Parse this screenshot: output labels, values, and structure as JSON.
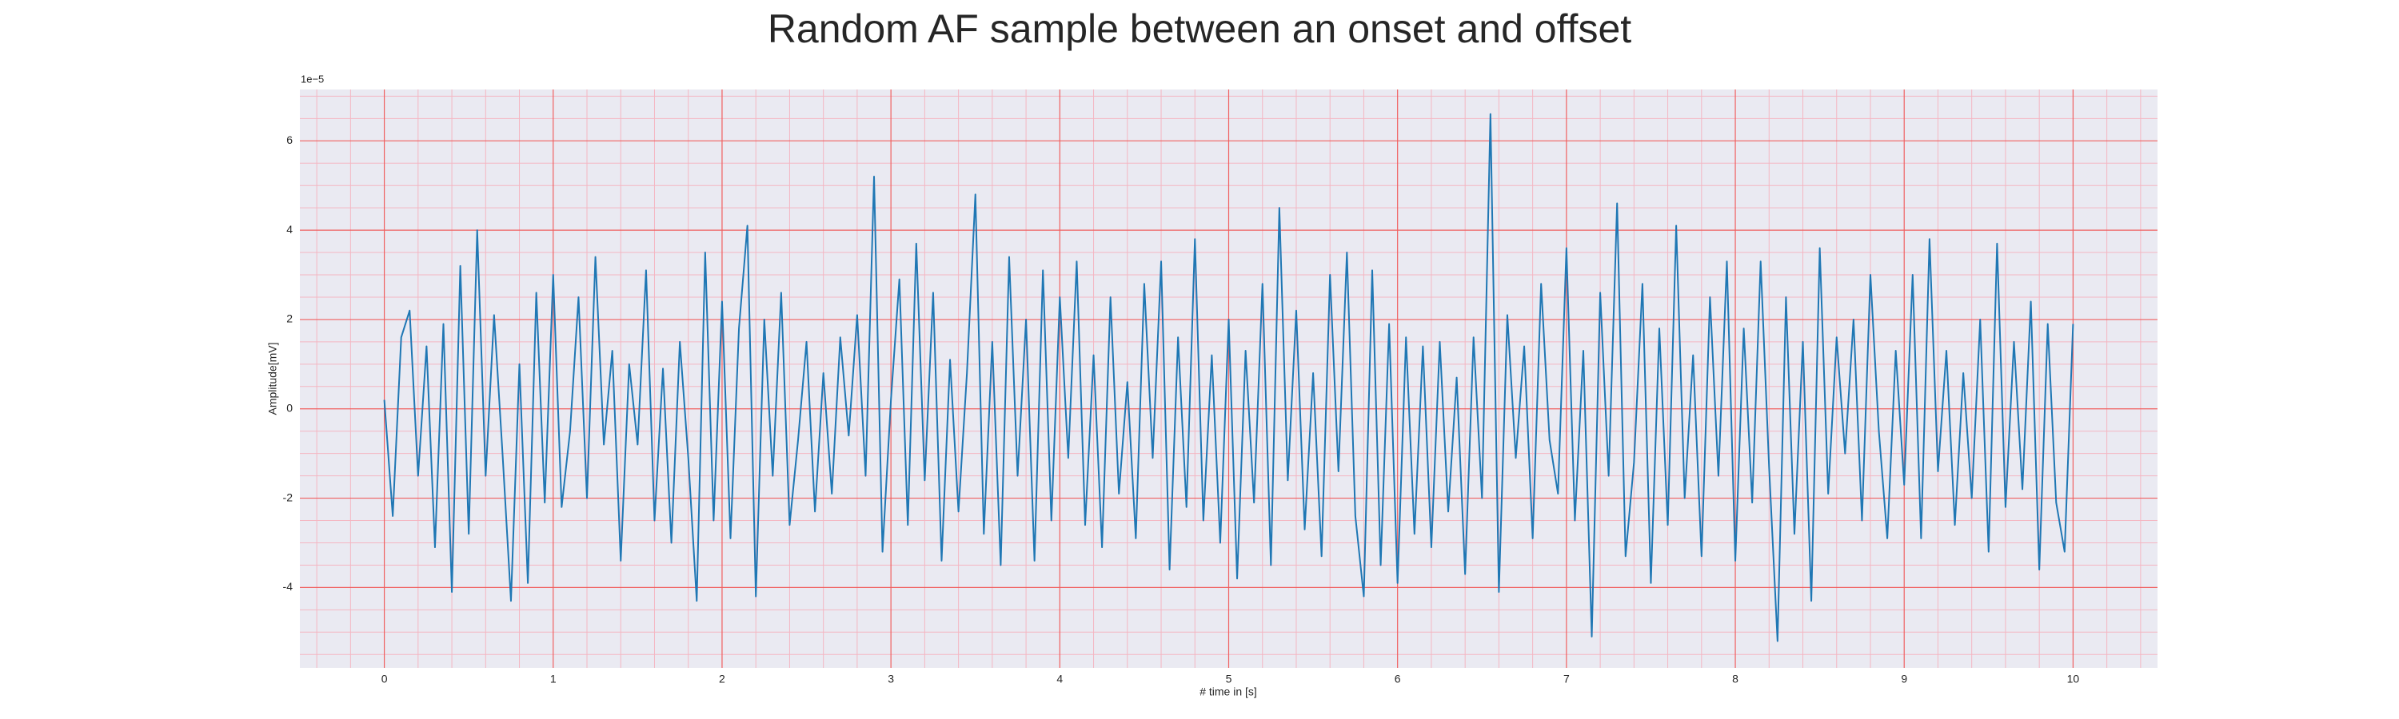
{
  "chart_data": {
    "type": "line",
    "title": "Random AF sample between an onset and offset",
    "xlabel": "# time in [s]",
    "ylabel": "Amplitude[mV]",
    "y_offset_label": "1e−5",
    "x": [
      0,
      0.05,
      0.1,
      0.15,
      0.2,
      0.25,
      0.3,
      0.35,
      0.4,
      0.45,
      0.5,
      0.55,
      0.6,
      0.65,
      0.7,
      0.75,
      0.8,
      0.85,
      0.9,
      0.95,
      1,
      1.05,
      1.1,
      1.15,
      1.2,
      1.25,
      1.3,
      1.35,
      1.4,
      1.45,
      1.5,
      1.55,
      1.6,
      1.65,
      1.7,
      1.75,
      1.8,
      1.85,
      1.9,
      1.95,
      2,
      2.05,
      2.1,
      2.15,
      2.2,
      2.25,
      2.3,
      2.35,
      2.4,
      2.45,
      2.5,
      2.55,
      2.6,
      2.65,
      2.7,
      2.75,
      2.8,
      2.85,
      2.9,
      2.95,
      3,
      3.05,
      3.1,
      3.15,
      3.2,
      3.25,
      3.3,
      3.35,
      3.4,
      3.45,
      3.5,
      3.55,
      3.6,
      3.65,
      3.7,
      3.75,
      3.8,
      3.85,
      3.9,
      3.95,
      4,
      4.05,
      4.1,
      4.15,
      4.2,
      4.25,
      4.3,
      4.35,
      4.4,
      4.45,
      4.5,
      4.55,
      4.6,
      4.65,
      4.7,
      4.75,
      4.8,
      4.85,
      4.9,
      4.95,
      5,
      5.05,
      5.1,
      5.15,
      5.2,
      5.25,
      5.3,
      5.35,
      5.4,
      5.45,
      5.5,
      5.55,
      5.6,
      5.65,
      5.7,
      5.75,
      5.8,
      5.85,
      5.9,
      5.95,
      6,
      6.05,
      6.1,
      6.15,
      6.2,
      6.25,
      6.3,
      6.35,
      6.4,
      6.45,
      6.5,
      6.55,
      6.6,
      6.65,
      6.7,
      6.75,
      6.8,
      6.85,
      6.9,
      6.95,
      7,
      7.05,
      7.1,
      7.15,
      7.2,
      7.25,
      7.3,
      7.35,
      7.4,
      7.45,
      7.5,
      7.55,
      7.6,
      7.65,
      7.7,
      7.75,
      7.8,
      7.85,
      7.9,
      7.95,
      8,
      8.05,
      8.1,
      8.15,
      8.2,
      8.25,
      8.3,
      8.35,
      8.4,
      8.45,
      8.5,
      8.55,
      8.6,
      8.65,
      8.7,
      8.75,
      8.8,
      8.85,
      8.9,
      8.95,
      9,
      9.05,
      9.1,
      9.15,
      9.2,
      9.25,
      9.3,
      9.35,
      9.4,
      9.45,
      9.5,
      9.55,
      9.6,
      9.65,
      9.7,
      9.75,
      9.8,
      9.85,
      9.9,
      9.95,
      10
    ],
    "series": [
      {
        "color": "#1f77b4",
        "values": [
          0.2,
          -2.4,
          1.6,
          2.2,
          -1.5,
          1.4,
          -3.1,
          1.9,
          -4.1,
          3.2,
          -2.8,
          4.0,
          -1.5,
          2.1,
          -1.0,
          -4.3,
          1.0,
          -3.9,
          2.6,
          -2.1,
          3.0,
          -2.2,
          -0.5,
          2.5,
          -2.0,
          3.4,
          -0.8,
          1.3,
          -3.4,
          1.0,
          -0.8,
          3.1,
          -2.5,
          0.9,
          -3.0,
          1.5,
          -1.1,
          -4.3,
          3.5,
          -2.5,
          2.4,
          -2.9,
          1.8,
          4.1,
          -4.2,
          2.0,
          -1.5,
          2.6,
          -2.6,
          -0.7,
          1.5,
          -2.3,
          0.8,
          -1.9,
          1.6,
          -0.6,
          2.1,
          -1.5,
          5.2,
          -3.2,
          0.2,
          2.9,
          -2.6,
          3.7,
          -1.6,
          2.6,
          -3.4,
          1.1,
          -2.3,
          0.8,
          4.8,
          -2.8,
          1.5,
          -3.5,
          3.4,
          -1.5,
          2.0,
          -3.4,
          3.1,
          -2.5,
          2.5,
          -1.1,
          3.3,
          -2.6,
          1.2,
          -3.1,
          2.5,
          -1.9,
          0.6,
          -2.9,
          2.8,
          -1.1,
          3.3,
          -3.6,
          1.6,
          -2.2,
          3.8,
          -2.5,
          1.2,
          -3.0,
          2.0,
          -3.8,
          1.3,
          -2.1,
          2.8,
          -3.5,
          4.5,
          -1.6,
          2.2,
          -2.7,
          0.8,
          -3.3,
          3.0,
          -1.4,
          3.5,
          -2.4,
          -4.2,
          3.1,
          -3.5,
          1.9,
          -3.9,
          1.6,
          -2.8,
          1.4,
          -3.1,
          1.5,
          -2.3,
          0.7,
          -3.7,
          1.6,
          -2.0,
          6.6,
          -4.1,
          2.1,
          -1.1,
          1.4,
          -2.9,
          2.8,
          -0.7,
          -1.9,
          3.6,
          -2.5,
          1.3,
          -5.1,
          2.6,
          -1.5,
          4.6,
          -3.3,
          -1.2,
          2.8,
          -3.9,
          1.8,
          -2.6,
          4.1,
          -2.0,
          1.2,
          -3.3,
          2.5,
          -1.5,
          3.3,
          -3.4,
          1.8,
          -2.1,
          3.3,
          -1.3,
          -5.2,
          2.5,
          -2.8,
          1.5,
          -4.3,
          3.6,
          -1.9,
          1.6,
          -1.0,
          2.0,
          -2.5,
          3.0,
          -0.5,
          -2.9,
          1.3,
          -1.7,
          3.0,
          -2.9,
          3.8,
          -1.4,
          1.3,
          -2.6,
          0.8,
          -2.0,
          2.0,
          -3.2,
          3.7,
          -2.2,
          1.5,
          -1.8,
          2.4,
          -3.6,
          1.9,
          -2.1,
          -3.2,
          1.9
        ]
      }
    ],
    "xlim": [
      -0.5,
      10.5
    ],
    "ylim": [
      -5.8,
      7.15
    ],
    "xticks": [
      0,
      1,
      2,
      3,
      4,
      5,
      6,
      7,
      8,
      9,
      10
    ],
    "yticks": [
      -4,
      -2,
      0,
      2,
      4,
      6
    ],
    "x_minor_ticks": [
      -0.4,
      -0.2,
      0.2,
      0.4,
      0.6,
      0.8,
      1.2,
      1.4,
      1.6,
      1.8,
      2.2,
      2.4,
      2.6,
      2.8,
      3.2,
      3.4,
      3.6,
      3.8,
      4.2,
      4.4,
      4.6,
      4.8,
      5.2,
      5.4,
      5.6,
      5.8,
      6.2,
      6.4,
      6.6,
      6.8,
      7.2,
      7.4,
      7.6,
      7.8,
      8.2,
      8.4,
      8.6,
      8.8,
      9.2,
      9.4,
      9.6,
      9.8,
      10.2,
      10.4
    ],
    "y_minor_ticks": [
      -5.5,
      -5,
      -4.5,
      -3.5,
      -3,
      -2.5,
      -1.5,
      -1,
      -0.5,
      0.5,
      1,
      1.5,
      2.5,
      3,
      3.5,
      4.5,
      5,
      5.5,
      6.5,
      7
    ],
    "grid": true
  }
}
